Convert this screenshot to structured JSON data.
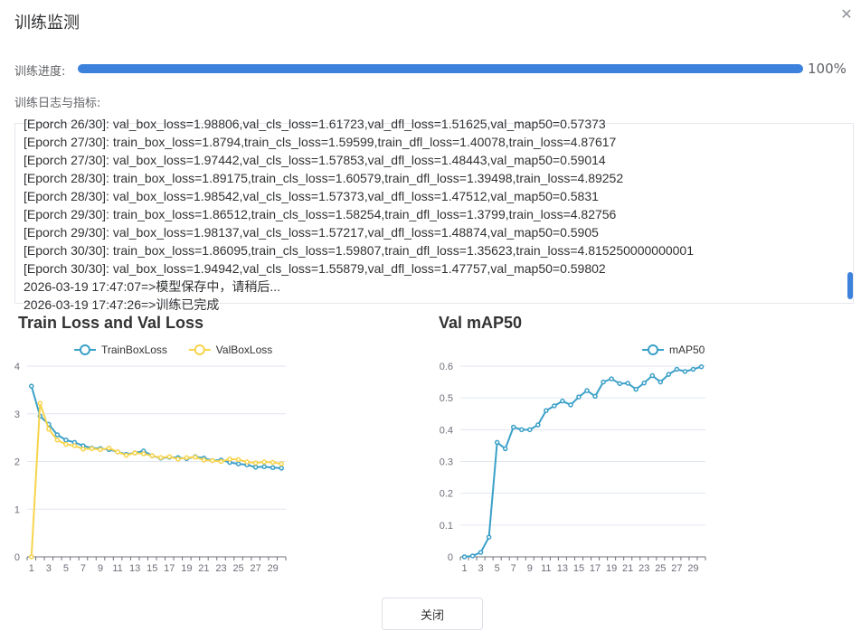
{
  "dialog": {
    "title": "训练监测",
    "progress_label": "训练进度:",
    "progress_value": 1.0,
    "progress_text": "100%",
    "log_label": "训练日志与指标:",
    "close_button": "关闭",
    "accent_color": "#3c82dc"
  },
  "log_lines": [
    "[Eporch 26/30]: val_box_loss=1.98806,val_cls_loss=1.61723,val_dfl_loss=1.51625,val_map50=0.57373",
    "[Eporch 27/30]: train_box_loss=1.8794,train_cls_loss=1.59599,train_dfl_loss=1.40078,train_loss=4.87617",
    "[Eporch 27/30]: val_box_loss=1.97442,val_cls_loss=1.57853,val_dfl_loss=1.48443,val_map50=0.59014",
    "[Eporch 28/30]: train_box_loss=1.89175,train_cls_loss=1.60579,train_dfl_loss=1.39498,train_loss=4.89252",
    "[Eporch 28/30]: val_box_loss=1.98542,val_cls_loss=1.57373,val_dfl_loss=1.47512,val_map50=0.5831",
    "[Eporch 29/30]: train_box_loss=1.86512,train_cls_loss=1.58254,train_dfl_loss=1.3799,train_loss=4.82756",
    "[Eporch 29/30]: val_box_loss=1.98137,val_cls_loss=1.57217,val_dfl_loss=1.48874,val_map50=0.5905",
    "[Eporch 30/30]: train_box_loss=1.86095,train_cls_loss=1.59807,train_dfl_loss=1.35623,train_loss=4.815250000000001",
    "[Eporch 30/30]: val_box_loss=1.94942,val_cls_loss=1.55879,val_dfl_loss=1.47757,val_map50=0.59802",
    "2026-03-19 17:47:07=>模型保存中，请稍后...",
    "2026-03-19 17:47:26=>训练已完成"
  ],
  "chart_data": [
    {
      "type": "line",
      "title": "Train Loss and Val Loss",
      "x": [
        1,
        2,
        3,
        4,
        5,
        6,
        7,
        8,
        9,
        10,
        11,
        12,
        13,
        14,
        15,
        16,
        17,
        18,
        19,
        20,
        21,
        22,
        23,
        24,
        25,
        26,
        27,
        28,
        29,
        30
      ],
      "x_ticks": [
        "1",
        "3",
        "5",
        "7",
        "9",
        "11",
        "13",
        "15",
        "17",
        "19",
        "21",
        "23",
        "25",
        "27",
        "29"
      ],
      "ylim": [
        0,
        4
      ],
      "y_ticks": [
        "0",
        "1",
        "2",
        "3",
        "4"
      ],
      "legend": "top-center",
      "grid": true,
      "series": [
        {
          "name": "TrainBoxLoss",
          "color": "#3ba0c8",
          "values": [
            3.58,
            2.95,
            2.78,
            2.56,
            2.45,
            2.4,
            2.33,
            2.28,
            2.27,
            2.25,
            2.2,
            2.15,
            2.18,
            2.22,
            2.12,
            2.07,
            2.09,
            2.08,
            2.06,
            2.1,
            2.07,
            2.02,
            2.03,
            1.98,
            1.95,
            1.93,
            1.88,
            1.89,
            1.87,
            1.86
          ]
        },
        {
          "name": "ValBoxLoss",
          "color": "#f8d44c",
          "values": [
            0.0,
            3.22,
            2.68,
            2.45,
            2.36,
            2.33,
            2.26,
            2.27,
            2.25,
            2.28,
            2.2,
            2.13,
            2.18,
            2.16,
            2.12,
            2.08,
            2.1,
            2.05,
            2.08,
            2.09,
            2.03,
            2.02,
            2.0,
            2.05,
            2.04,
            1.99,
            1.97,
            1.99,
            1.98,
            1.95
          ]
        }
      ]
    },
    {
      "type": "line",
      "title": "Val mAP50",
      "x": [
        1,
        2,
        3,
        4,
        5,
        6,
        7,
        8,
        9,
        10,
        11,
        12,
        13,
        14,
        15,
        16,
        17,
        18,
        19,
        20,
        21,
        22,
        23,
        24,
        25,
        26,
        27,
        28,
        29,
        30
      ],
      "x_ticks": [
        "1",
        "3",
        "5",
        "7",
        "9",
        "11",
        "13",
        "15",
        "17",
        "19",
        "21",
        "23",
        "25",
        "27",
        "29"
      ],
      "ylim": [
        0,
        0.6
      ],
      "y_ticks": [
        "0",
        "0.1",
        "0.2",
        "0.3",
        "0.4",
        "0.5",
        "0.6"
      ],
      "legend": "top-right",
      "grid": true,
      "series": [
        {
          "name": "mAP50",
          "color": "#3ba0c8",
          "values": [
            0.0,
            0.003,
            0.014,
            0.062,
            0.36,
            0.34,
            0.408,
            0.4,
            0.4,
            0.415,
            0.46,
            0.475,
            0.49,
            0.478,
            0.503,
            0.523,
            0.505,
            0.55,
            0.56,
            0.545,
            0.546,
            0.527,
            0.547,
            0.57,
            0.55,
            0.574,
            0.59,
            0.583,
            0.59,
            0.598
          ]
        }
      ]
    }
  ]
}
